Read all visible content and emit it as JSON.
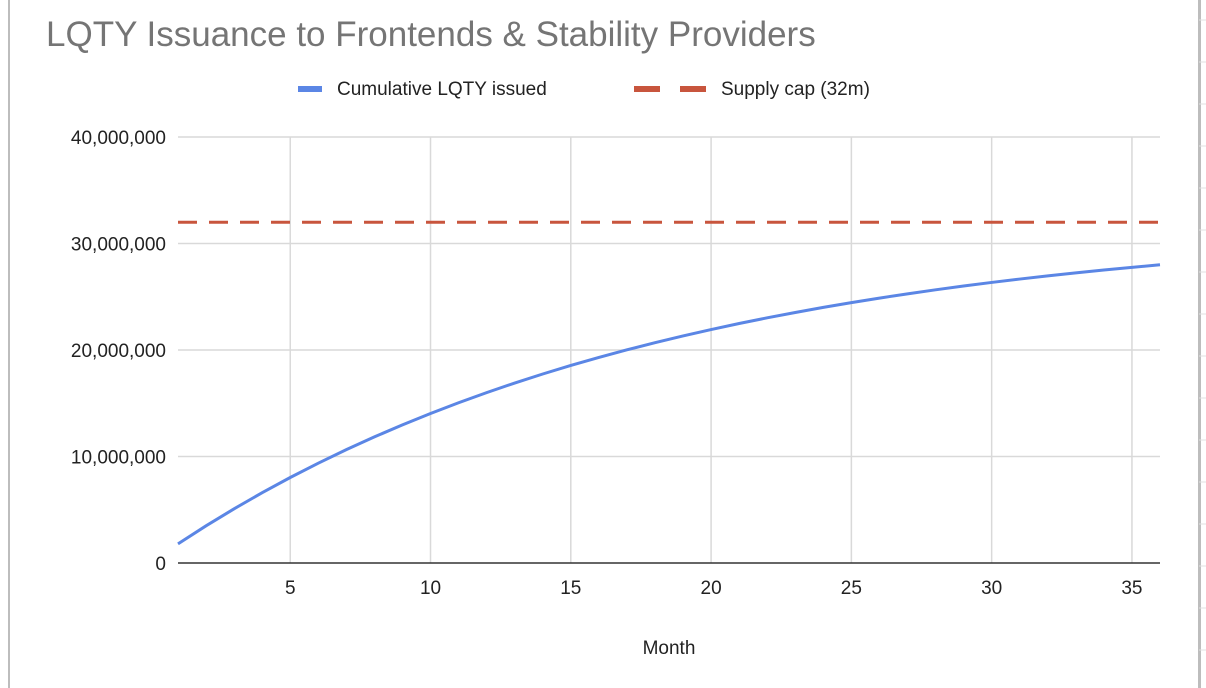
{
  "chart_data": {
    "type": "line",
    "title": "LQTY Issuance to Frontends & Stability Providers",
    "xlabel": "Month",
    "ylabel": "",
    "xlim": [
      1,
      36
    ],
    "ylim": [
      0,
      40000000
    ],
    "x_ticks": [
      5,
      10,
      15,
      20,
      25,
      30,
      35
    ],
    "y_ticks": [
      0,
      10000000,
      20000000,
      30000000,
      40000000
    ],
    "y_tick_labels": [
      "0",
      "10,000,000",
      "20,000,000",
      "30,000,000",
      "40,000,000"
    ],
    "grid": true,
    "legend_position": "top",
    "x": [
      1,
      2,
      3,
      4,
      5,
      6,
      7,
      8,
      9,
      10,
      11,
      12,
      13,
      14,
      15,
      16,
      17,
      18,
      19,
      20,
      21,
      22,
      23,
      24,
      25,
      26,
      27,
      28,
      29,
      30,
      31,
      32,
      33,
      34,
      35,
      36
    ],
    "series": [
      {
        "name": "Cumulative LQTY issued",
        "color": "#5b86e5",
        "style": "solid",
        "values": [
          1796000,
          3491000,
          5091000,
          6602000,
          8027000,
          9373000,
          10643000,
          11841000,
          12973000,
          14041000,
          15049000,
          16000000,
          16898000,
          17746000,
          18546000,
          19301000,
          20014000,
          20686000,
          21321000,
          21921000,
          22486000,
          23020000,
          23524000,
          24000000,
          24449000,
          24873000,
          25273000,
          25650000,
          26007000,
          26343000,
          26661000,
          26960000,
          27243000,
          27510000,
          27762000,
          28000000
        ]
      },
      {
        "name": "Supply cap (32m)",
        "color": "#c8553d",
        "style": "dashed",
        "constant": 32000000
      }
    ]
  }
}
